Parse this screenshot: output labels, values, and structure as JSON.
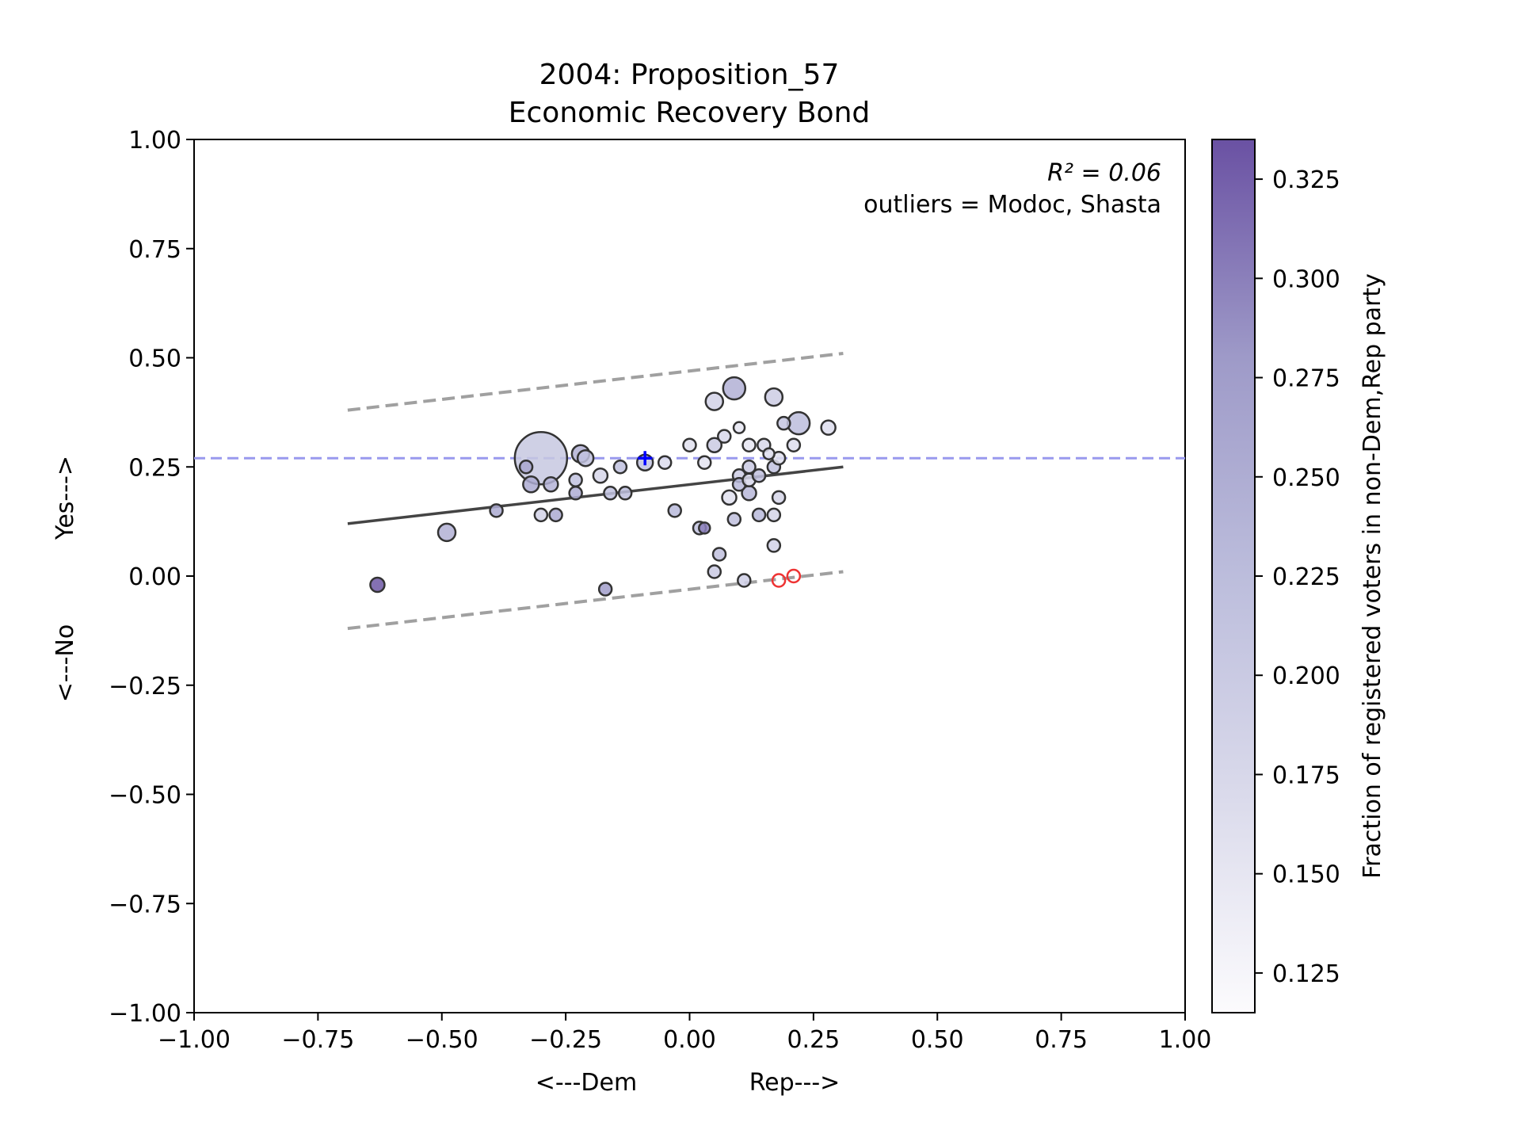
{
  "chart_data": {
    "type": "scatter",
    "title": "2004: Proposition_57",
    "subtitle": "Economic Recovery Bond",
    "xlabel_left": "<---Dem",
    "xlabel_right": "Rep--->",
    "ylabel_bottom": "<---No",
    "ylabel_top": "Yes--->",
    "xlim": [
      -1.0,
      1.0
    ],
    "ylim": [
      -1.0,
      1.0
    ],
    "xticks": [
      "−1.00",
      "−0.75",
      "−0.50",
      "−0.25",
      "0.00",
      "0.25",
      "0.50",
      "0.75",
      "1.00"
    ],
    "yticks": [
      "−1.00",
      "−0.75",
      "−0.50",
      "−0.25",
      "0.00",
      "0.25",
      "0.50",
      "0.75",
      "1.00"
    ],
    "annotation_r2": "R² = 0.06",
    "annotation_outliers": "outliers = Modoc, Shasta",
    "colorbar": {
      "label": "Fraction of registered voters in non-Dem,Rep party",
      "range": [
        0.115,
        0.335
      ],
      "ticks": [
        "0.125",
        "0.150",
        "0.175",
        "0.200",
        "0.225",
        "0.250",
        "0.275",
        "0.300",
        "0.325"
      ],
      "color_low": "#fcfbfd",
      "color_high": "#6a3d9a"
    },
    "fit_line": {
      "x": [
        -0.69,
        0.31
      ],
      "y": [
        0.12,
        0.25
      ]
    },
    "band_upper": {
      "x": [
        -0.69,
        0.31
      ],
      "y": [
        0.38,
        0.51
      ]
    },
    "band_lower": {
      "x": [
        -0.69,
        0.31
      ],
      "y": [
        -0.12,
        0.01
      ]
    },
    "state_mean_y": 0.27,
    "state_marker": {
      "x": -0.09,
      "y": 0.27
    },
    "points": [
      {
        "x": -0.3,
        "y": 0.27,
        "c": 0.205,
        "s": 33
      },
      {
        "x": -0.22,
        "y": 0.28,
        "c": 0.245,
        "s": 11
      },
      {
        "x": -0.21,
        "y": 0.27,
        "c": 0.215,
        "s": 10
      },
      {
        "x": -0.33,
        "y": 0.25,
        "c": 0.26,
        "s": 8
      },
      {
        "x": -0.32,
        "y": 0.21,
        "c": 0.255,
        "s": 10
      },
      {
        "x": -0.28,
        "y": 0.21,
        "c": 0.24,
        "s": 9
      },
      {
        "x": -0.39,
        "y": 0.15,
        "c": 0.255,
        "s": 8
      },
      {
        "x": -0.49,
        "y": 0.1,
        "c": 0.245,
        "s": 11
      },
      {
        "x": -0.63,
        "y": -0.02,
        "c": 0.33,
        "s": 9
      },
      {
        "x": -0.3,
        "y": 0.14,
        "c": 0.185,
        "s": 8
      },
      {
        "x": -0.27,
        "y": 0.14,
        "c": 0.255,
        "s": 8
      },
      {
        "x": -0.23,
        "y": 0.22,
        "c": 0.215,
        "s": 8
      },
      {
        "x": -0.23,
        "y": 0.19,
        "c": 0.25,
        "s": 8
      },
      {
        "x": -0.18,
        "y": 0.23,
        "c": 0.175,
        "s": 9
      },
      {
        "x": -0.16,
        "y": 0.19,
        "c": 0.215,
        "s": 8
      },
      {
        "x": -0.14,
        "y": 0.25,
        "c": 0.215,
        "s": 8
      },
      {
        "x": -0.13,
        "y": 0.19,
        "c": 0.225,
        "s": 8
      },
      {
        "x": -0.17,
        "y": -0.03,
        "c": 0.275,
        "s": 8
      },
      {
        "x": -0.09,
        "y": 0.26,
        "c": 0.215,
        "s": 10
      },
      {
        "x": -0.05,
        "y": 0.26,
        "c": 0.165,
        "s": 8
      },
      {
        "x": -0.03,
        "y": 0.15,
        "c": 0.23,
        "s": 8
      },
      {
        "x": 0.0,
        "y": 0.3,
        "c": 0.16,
        "s": 8
      },
      {
        "x": 0.02,
        "y": 0.11,
        "c": 0.215,
        "s": 8
      },
      {
        "x": 0.03,
        "y": 0.11,
        "c": 0.3,
        "s": 7
      },
      {
        "x": 0.03,
        "y": 0.26,
        "c": 0.155,
        "s": 8
      },
      {
        "x": 0.05,
        "y": 0.4,
        "c": 0.185,
        "s": 11
      },
      {
        "x": 0.05,
        "y": 0.3,
        "c": 0.2,
        "s": 9
      },
      {
        "x": 0.07,
        "y": 0.32,
        "c": 0.175,
        "s": 8
      },
      {
        "x": 0.06,
        "y": 0.05,
        "c": 0.22,
        "s": 8
      },
      {
        "x": 0.05,
        "y": 0.01,
        "c": 0.2,
        "s": 8
      },
      {
        "x": 0.09,
        "y": 0.43,
        "c": 0.245,
        "s": 14
      },
      {
        "x": 0.1,
        "y": 0.34,
        "c": 0.15,
        "s": 7
      },
      {
        "x": 0.08,
        "y": 0.18,
        "c": 0.16,
        "s": 9
      },
      {
        "x": 0.09,
        "y": 0.13,
        "c": 0.22,
        "s": 8
      },
      {
        "x": 0.1,
        "y": 0.23,
        "c": 0.195,
        "s": 8
      },
      {
        "x": 0.1,
        "y": 0.21,
        "c": 0.23,
        "s": 8
      },
      {
        "x": 0.11,
        "y": -0.01,
        "c": 0.19,
        "s": 8
      },
      {
        "x": 0.12,
        "y": 0.3,
        "c": 0.15,
        "s": 8
      },
      {
        "x": 0.12,
        "y": 0.25,
        "c": 0.2,
        "s": 8
      },
      {
        "x": 0.12,
        "y": 0.22,
        "c": 0.175,
        "s": 8
      },
      {
        "x": 0.12,
        "y": 0.19,
        "c": 0.235,
        "s": 9
      },
      {
        "x": 0.14,
        "y": 0.23,
        "c": 0.22,
        "s": 8
      },
      {
        "x": 0.14,
        "y": 0.14,
        "c": 0.23,
        "s": 8
      },
      {
        "x": 0.15,
        "y": 0.3,
        "c": 0.175,
        "s": 8
      },
      {
        "x": 0.16,
        "y": 0.28,
        "c": 0.165,
        "s": 7
      },
      {
        "x": 0.17,
        "y": 0.41,
        "c": 0.195,
        "s": 11
      },
      {
        "x": 0.17,
        "y": 0.25,
        "c": 0.215,
        "s": 8
      },
      {
        "x": 0.17,
        "y": 0.14,
        "c": 0.18,
        "s": 8
      },
      {
        "x": 0.17,
        "y": 0.07,
        "c": 0.185,
        "s": 8
      },
      {
        "x": 0.18,
        "y": 0.27,
        "c": 0.16,
        "s": 8
      },
      {
        "x": 0.18,
        "y": 0.18,
        "c": 0.18,
        "s": 8
      },
      {
        "x": 0.19,
        "y": 0.35,
        "c": 0.21,
        "s": 8
      },
      {
        "x": 0.21,
        "y": 0.3,
        "c": 0.165,
        "s": 8
      },
      {
        "x": 0.22,
        "y": 0.35,
        "c": 0.225,
        "s": 14
      },
      {
        "x": 0.28,
        "y": 0.34,
        "c": 0.165,
        "s": 9
      },
      {
        "x": 0.18,
        "y": -0.01,
        "c": 0.15,
        "s": 8,
        "outlier": true
      },
      {
        "x": 0.21,
        "y": 0.0,
        "c": 0.15,
        "s": 8,
        "outlier": true
      }
    ]
  },
  "colors": {
    "fit_line": "#444444",
    "band": "#a0a0a0",
    "mean_line": "#9999ee",
    "marker": "#0000ff",
    "outlier_edge": "#ee3333"
  }
}
